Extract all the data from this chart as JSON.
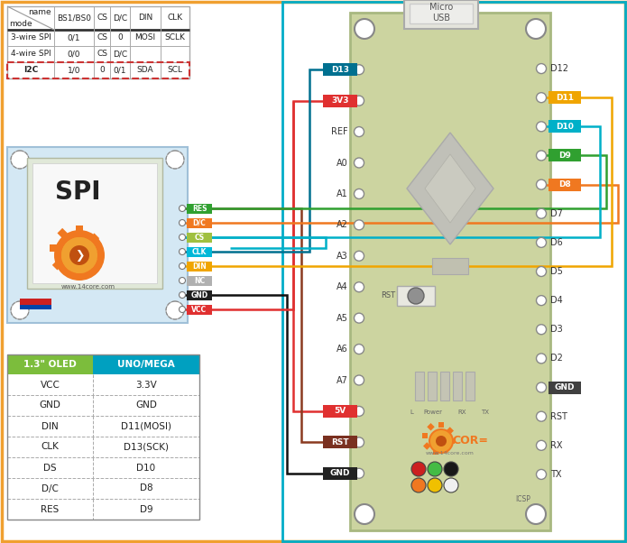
{
  "bg": "#ffffff",
  "orange_border": "#f0a030",
  "cyan_border": "#00adc8",
  "board_fill": "#ccd4a0",
  "board_edge": "#a8b880",
  "spi_bg": "#d4e8f4",
  "spi_edge": "#a0c0d8",
  "t2_green": "#7cbd3c",
  "t2_blue": "#00a0c0",
  "left_pins": [
    "D13",
    "3V3",
    "REF",
    "A0",
    "A1",
    "A2",
    "A3",
    "A4",
    "A5",
    "A6",
    "A7",
    "5V",
    "RST",
    "GND"
  ],
  "right_pins": [
    "D12",
    "D11",
    "D10",
    "D9",
    "D8",
    "D7",
    "D6",
    "D5",
    "D4",
    "D3",
    "D2",
    "GND",
    "RST",
    "RX",
    "TX"
  ],
  "spi_pins": [
    "RES",
    "D/C",
    "CS",
    "CLK",
    "DIN",
    "NC",
    "GND",
    "VCC"
  ],
  "spi_colors": [
    "#30a030",
    "#f07820",
    "#a0c040",
    "#00b8d8",
    "#f0a500",
    "#b0b0b0",
    "#202020",
    "#e03030"
  ],
  "hl_left": {
    "D13": "#007090",
    "3V3": "#e03030",
    "5V": "#e03030",
    "RST": "#7a3020",
    "GND": "#222222"
  },
  "hl_right": {
    "D11": "#f0a500",
    "D10": "#00b0c8",
    "D9": "#30a030",
    "D8": "#f07820",
    "GND": "#404040"
  },
  "table1": [
    [
      "",
      "BS1/BS0",
      "CS",
      "D/C",
      "DIN",
      "CLK"
    ],
    [
      "3-wire SPI",
      "0/1",
      "CS",
      "0",
      "MOSI",
      "SCLK"
    ],
    [
      "4-wire SPI",
      "0/0",
      "CS",
      "D/C",
      "",
      ""
    ],
    [
      "I2C",
      "1/0",
      "0",
      "0/1",
      "SDA",
      "SCL"
    ]
  ],
  "table2": [
    [
      "1.3\" OLED",
      "UNO/MEGA"
    ],
    [
      "VCC",
      "3.3V"
    ],
    [
      "GND",
      "GND"
    ],
    [
      "DIN",
      "D11(MOSI)"
    ],
    [
      "CLK",
      "D13(SCK)"
    ],
    [
      "DS",
      "D10"
    ],
    [
      "D/C",
      "D8"
    ],
    [
      "RES",
      "D9"
    ]
  ]
}
